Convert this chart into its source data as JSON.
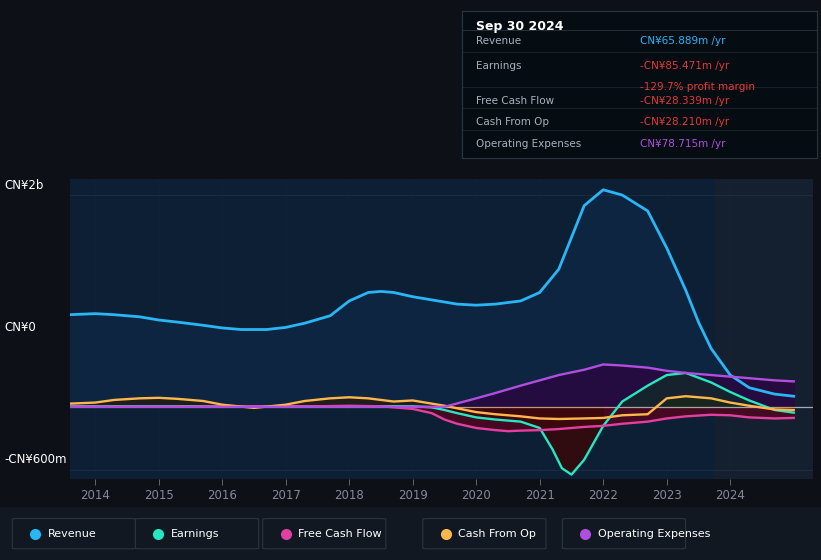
{
  "bg_color": "#0d1117",
  "chart_bg": "#0d1f35",
  "title_date": "Sep 30 2024",
  "ylabel_top": "CN¥2b",
  "ylabel_zero": "CN¥0",
  "ylabel_bottom": "-CN¥600m",
  "ylim": [
    -680,
    2150
  ],
  "xticks": [
    2014,
    2015,
    2016,
    2017,
    2018,
    2019,
    2020,
    2021,
    2022,
    2023,
    2024
  ],
  "xlim_start": 2013.6,
  "xlim_end": 2025.3,
  "shaded_x_start": 2023.75,
  "Revenue": {
    "color": "#29b6f6",
    "x": [
      2013.6,
      2014.0,
      2014.3,
      2014.7,
      2015.0,
      2015.3,
      2015.7,
      2016.0,
      2016.3,
      2016.7,
      2017.0,
      2017.3,
      2017.7,
      2018.0,
      2018.3,
      2018.5,
      2018.7,
      2019.0,
      2019.3,
      2019.7,
      2020.0,
      2020.3,
      2020.7,
      2021.0,
      2021.3,
      2021.5,
      2021.7,
      2022.0,
      2022.3,
      2022.7,
      2023.0,
      2023.3,
      2023.5,
      2023.7,
      2024.0,
      2024.3,
      2024.7,
      2025.0
    ],
    "y": [
      870,
      880,
      870,
      850,
      820,
      800,
      770,
      745,
      730,
      730,
      750,
      790,
      860,
      1000,
      1080,
      1090,
      1080,
      1040,
      1010,
      970,
      960,
      970,
      1000,
      1080,
      1300,
      1600,
      1900,
      2050,
      2000,
      1850,
      1500,
      1100,
      800,
      550,
      300,
      180,
      120,
      100
    ]
  },
  "Earnings": {
    "color": "#26e8c0",
    "x": [
      2013.6,
      2014.0,
      2014.5,
      2015.0,
      2015.5,
      2016.0,
      2016.5,
      2017.0,
      2017.5,
      2018.0,
      2018.5,
      2019.0,
      2019.3,
      2019.5,
      2019.7,
      2020.0,
      2020.3,
      2020.5,
      2020.7,
      2021.0,
      2021.2,
      2021.35,
      2021.5,
      2021.7,
      2022.0,
      2022.3,
      2022.7,
      2023.0,
      2023.3,
      2023.7,
      2024.0,
      2024.3,
      2024.7,
      2025.0
    ],
    "y": [
      5,
      5,
      5,
      5,
      5,
      5,
      5,
      5,
      5,
      5,
      5,
      5,
      -5,
      -30,
      -60,
      -100,
      -120,
      -130,
      -140,
      -200,
      -400,
      -580,
      -640,
      -500,
      -180,
      50,
      200,
      300,
      320,
      230,
      140,
      60,
      -30,
      -55
    ]
  },
  "FreeCashFlow": {
    "color": "#e040a0",
    "x": [
      2013.6,
      2014.0,
      2014.5,
      2015.0,
      2015.5,
      2016.0,
      2016.5,
      2017.0,
      2017.5,
      2018.0,
      2018.5,
      2019.0,
      2019.3,
      2019.5,
      2019.7,
      2020.0,
      2020.3,
      2020.5,
      2020.7,
      2021.0,
      2021.3,
      2021.7,
      2022.0,
      2022.3,
      2022.7,
      2023.0,
      2023.3,
      2023.7,
      2024.0,
      2024.3,
      2024.7,
      2025.0
    ],
    "y": [
      0,
      0,
      0,
      0,
      0,
      5,
      5,
      5,
      5,
      10,
      5,
      -20,
      -60,
      -120,
      -160,
      -200,
      -220,
      -230,
      -225,
      -220,
      -210,
      -190,
      -180,
      -160,
      -140,
      -110,
      -90,
      -75,
      -80,
      -100,
      -110,
      -105
    ]
  },
  "CashFromOp": {
    "color": "#ffb74d",
    "x": [
      2013.6,
      2014.0,
      2014.3,
      2014.7,
      2015.0,
      2015.3,
      2015.7,
      2016.0,
      2016.5,
      2017.0,
      2017.3,
      2017.7,
      2018.0,
      2018.3,
      2018.7,
      2019.0,
      2019.5,
      2020.0,
      2020.3,
      2020.7,
      2021.0,
      2021.3,
      2021.7,
      2022.0,
      2022.3,
      2022.7,
      2023.0,
      2023.3,
      2023.7,
      2024.0,
      2024.3,
      2024.7,
      2025.0
    ],
    "y": [
      30,
      40,
      65,
      80,
      85,
      75,
      55,
      20,
      -10,
      20,
      55,
      80,
      90,
      80,
      50,
      60,
      10,
      -50,
      -70,
      -90,
      -110,
      -115,
      -110,
      -105,
      -80,
      -70,
      80,
      100,
      80,
      40,
      10,
      -25,
      -30
    ]
  },
  "OperatingExpenses": {
    "color": "#b04edd",
    "x": [
      2013.6,
      2014.0,
      2015.0,
      2016.0,
      2017.0,
      2018.0,
      2019.0,
      2019.5,
      2020.0,
      2020.3,
      2020.7,
      2021.0,
      2021.3,
      2021.7,
      2022.0,
      2022.3,
      2022.7,
      2023.0,
      2023.3,
      2023.5,
      2023.7,
      2024.0,
      2024.3,
      2024.7,
      2025.0
    ],
    "y": [
      0,
      0,
      0,
      0,
      0,
      0,
      0,
      0,
      80,
      130,
      200,
      250,
      300,
      350,
      400,
      390,
      370,
      340,
      320,
      310,
      300,
      285,
      270,
      250,
      240
    ]
  },
  "table_rows": [
    {
      "label": "Revenue",
      "value": "CN¥65.889m /yr",
      "value_color": "#29b6f6",
      "sub": ""
    },
    {
      "label": "Earnings",
      "value": "-CN¥85.471m /yr",
      "value_color": "#e53935",
      "sub": "-129.7% profit margin"
    },
    {
      "label": "Free Cash Flow",
      "value": "-CN¥28.339m /yr",
      "value_color": "#e53935",
      "sub": ""
    },
    {
      "label": "Cash From Op",
      "value": "-CN¥28.210m /yr",
      "value_color": "#e53935",
      "sub": ""
    },
    {
      "label": "Operating Expenses",
      "value": "CN¥78.715m /yr",
      "value_color": "#b04edd",
      "sub": ""
    }
  ],
  "legend": [
    {
      "label": "Revenue",
      "color": "#29b6f6"
    },
    {
      "label": "Earnings",
      "color": "#26e8c0"
    },
    {
      "label": "Free Cash Flow",
      "color": "#e040a0"
    },
    {
      "label": "Cash From Op",
      "color": "#ffb74d"
    },
    {
      "label": "Operating Expenses",
      "color": "#b04edd"
    }
  ]
}
